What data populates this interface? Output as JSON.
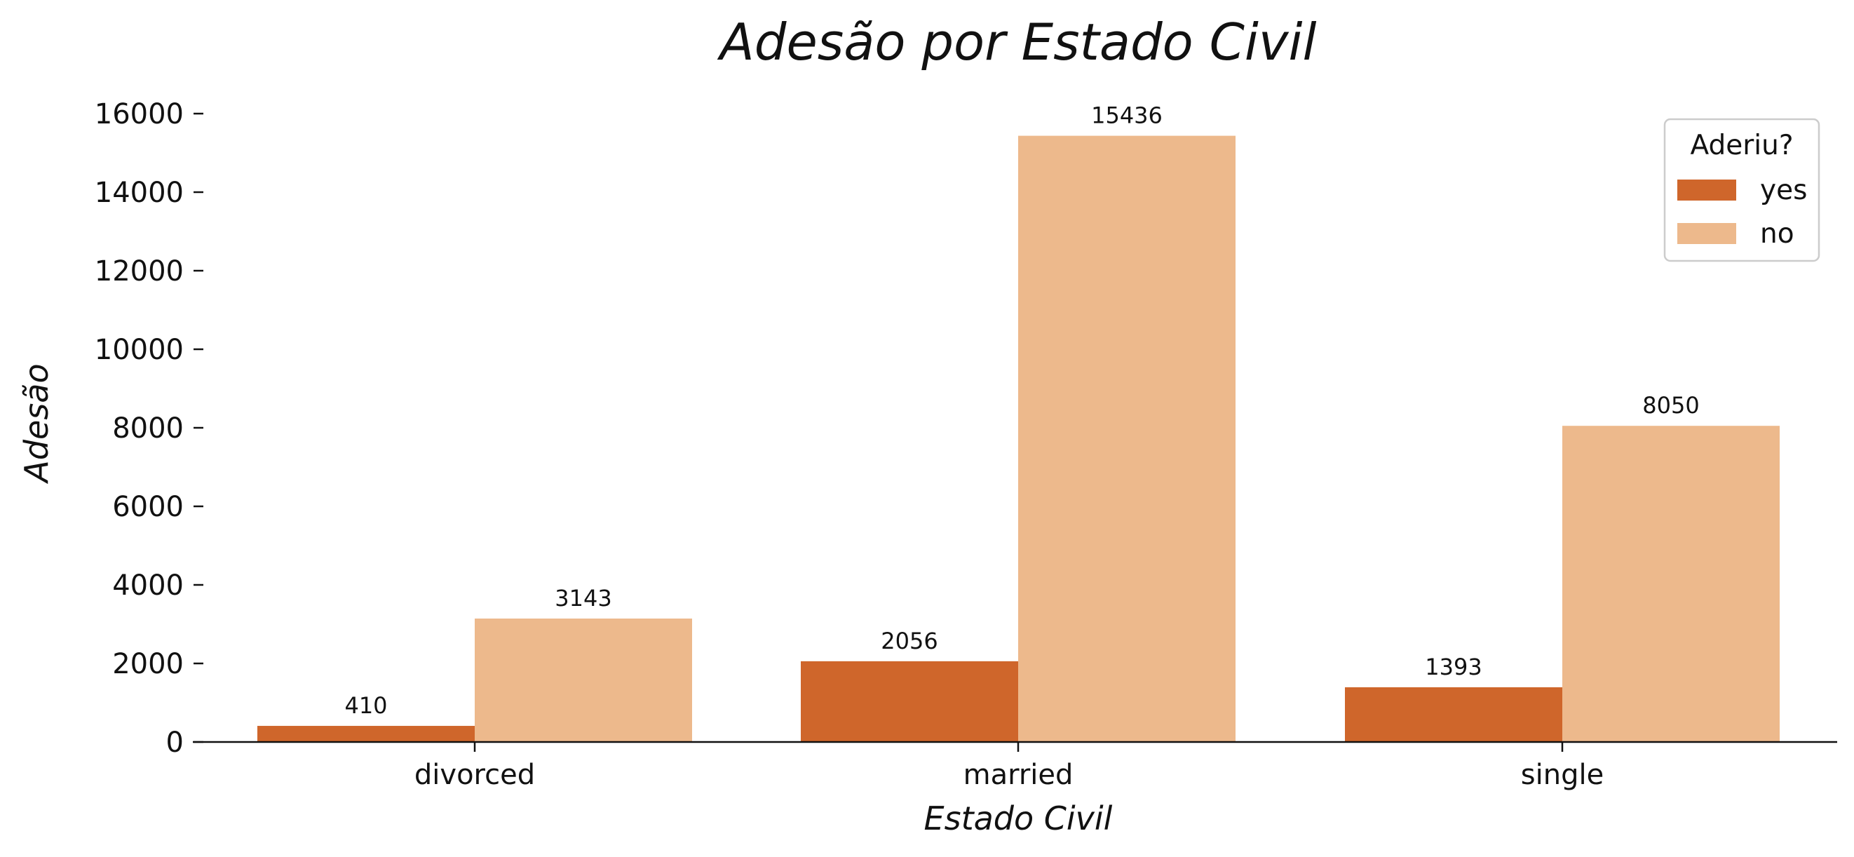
{
  "chart_data": {
    "type": "bar",
    "title": "Adesão por Estado Civil",
    "xlabel": "Estado Civil",
    "ylabel": "Adesão",
    "categories": [
      "divorced",
      "married",
      "single"
    ],
    "series": [
      {
        "name": "yes",
        "values": [
          410,
          2056,
          1393
        ],
        "color": "#cf662b"
      },
      {
        "name": "no",
        "values": [
          3143,
          15436,
          8050
        ],
        "color": "#edb98c"
      }
    ],
    "yticks": [
      0,
      2000,
      4000,
      6000,
      8000,
      10000,
      12000,
      14000,
      16000
    ],
    "ylim": [
      0,
      16500
    ],
    "grid": false,
    "legend": {
      "title": "Aderiu?",
      "position": "top-right"
    }
  }
}
